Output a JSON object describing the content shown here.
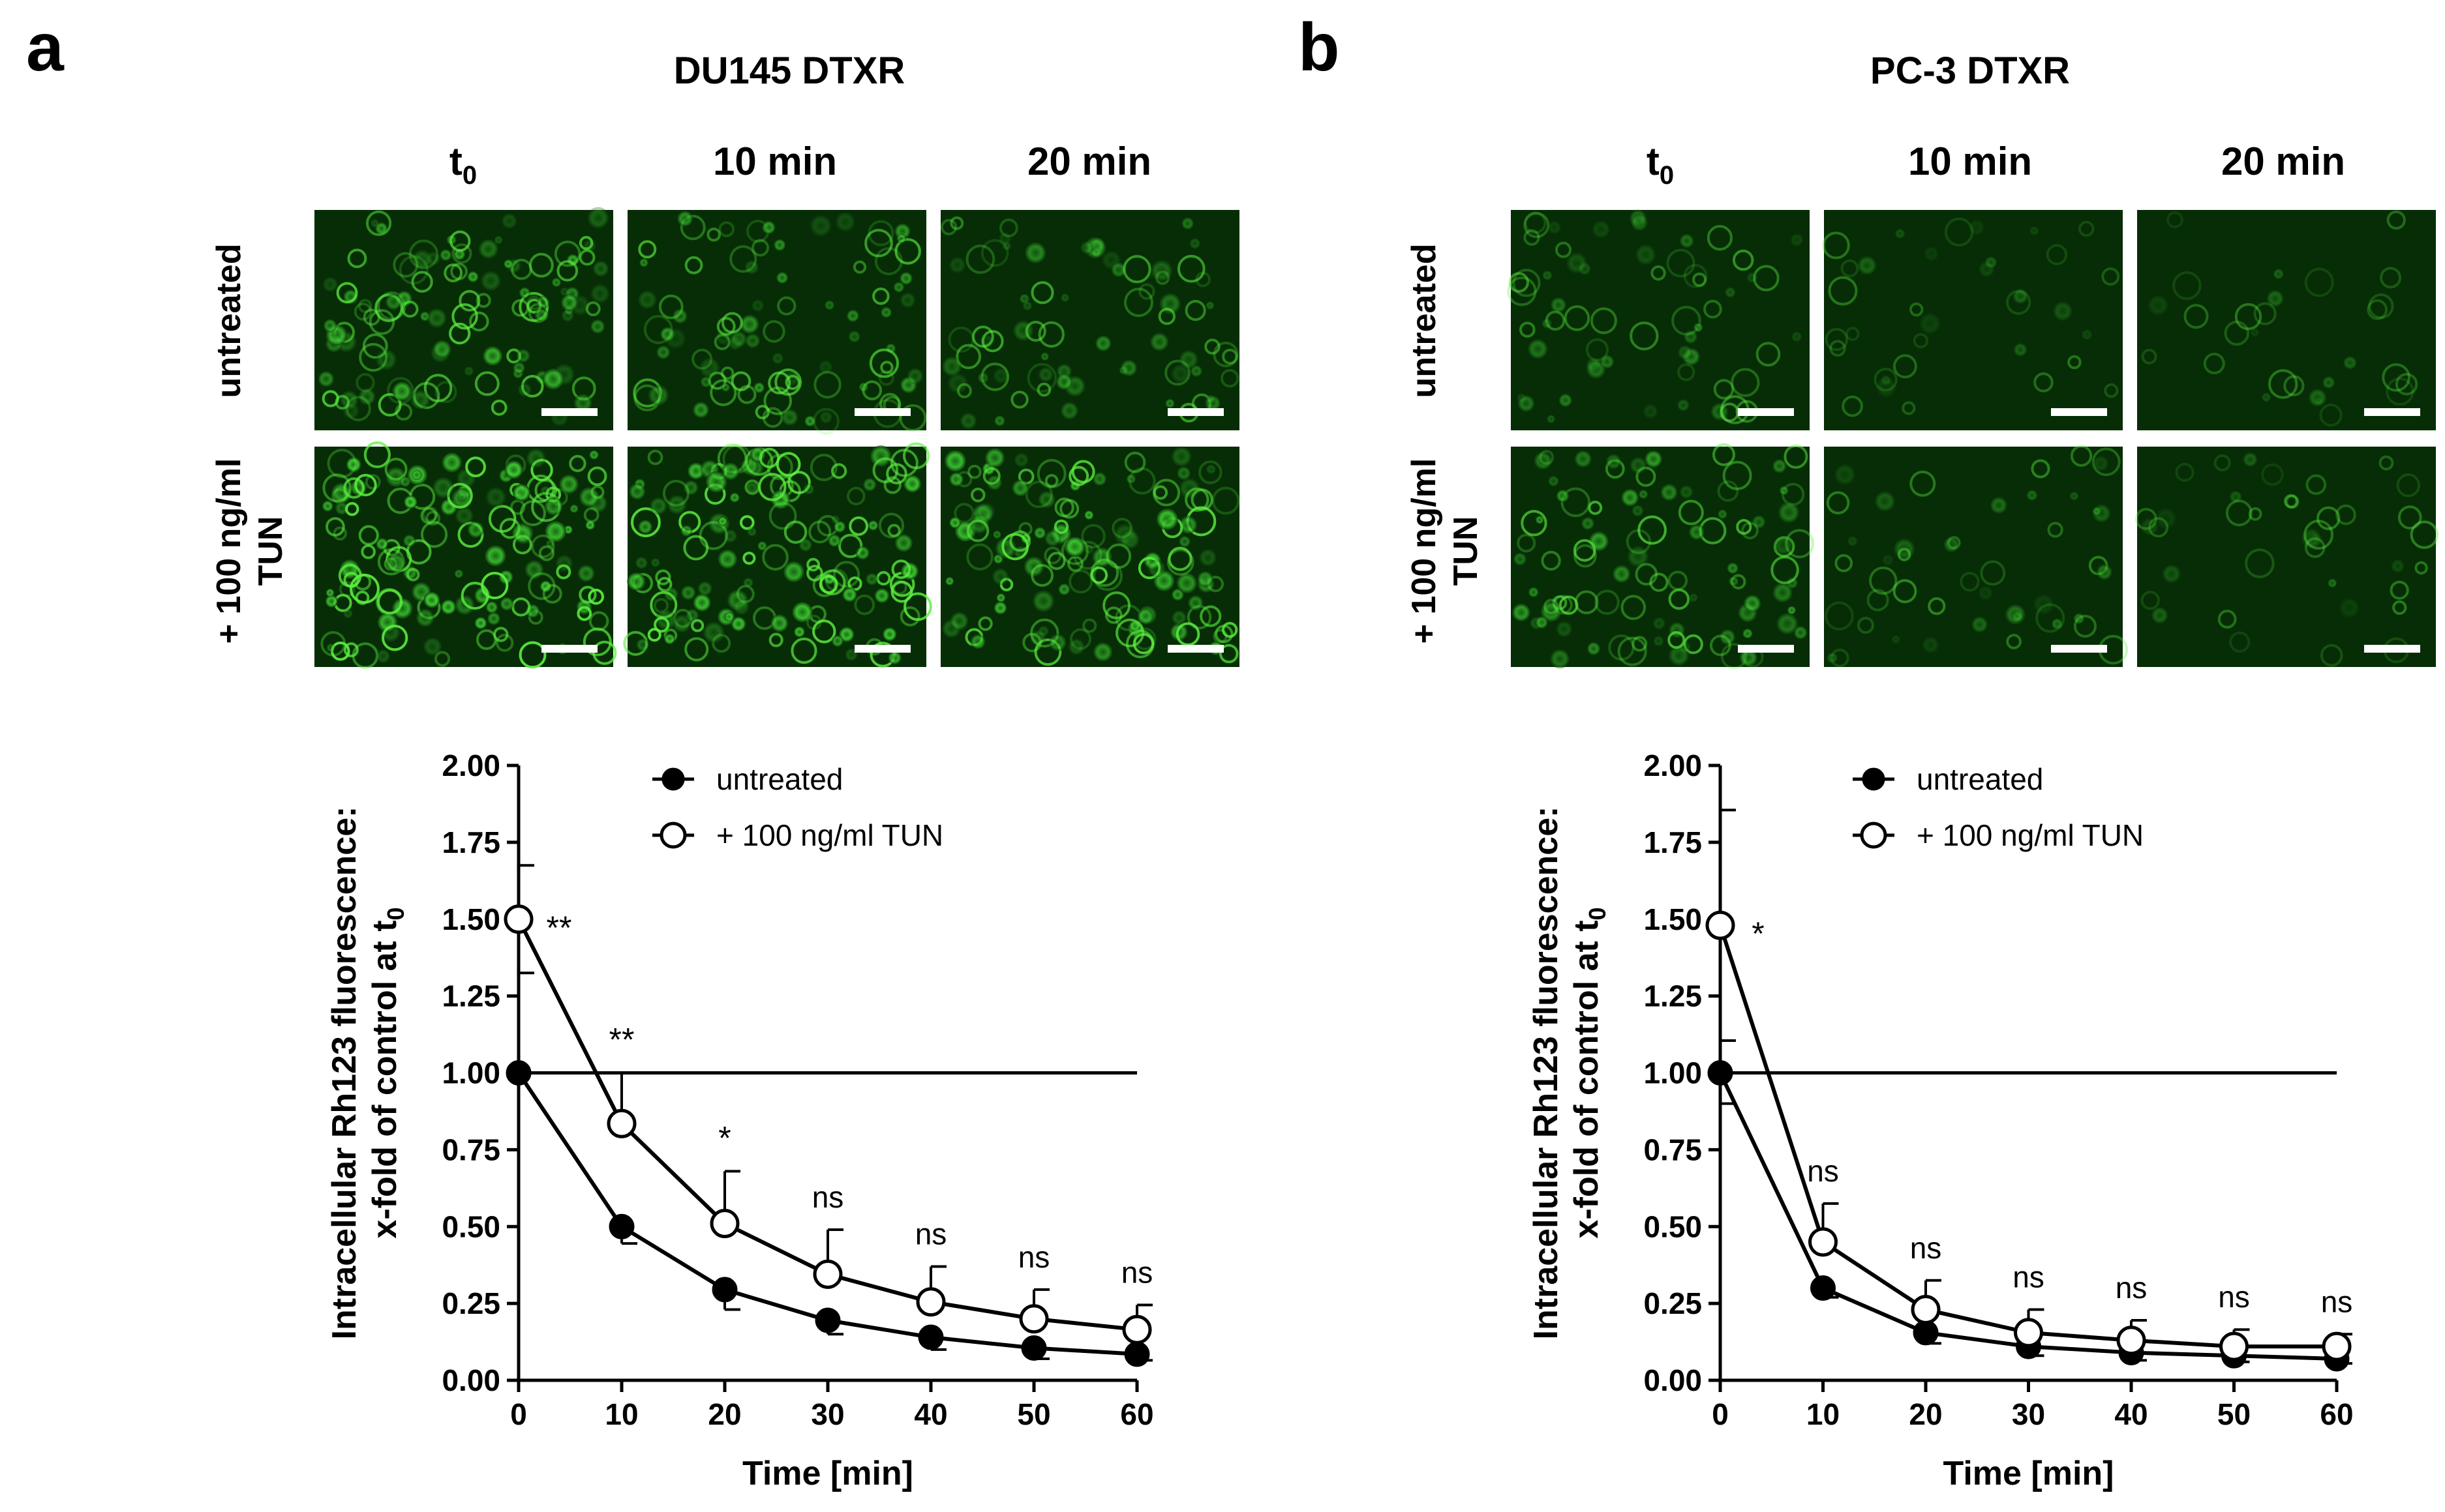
{
  "panels": [
    {
      "letter": "a",
      "title": "DU145 DTXR",
      "time_labels": [
        {
          "main": "t",
          "sub": "0"
        },
        {
          "main": "10 min",
          "sub": ""
        },
        {
          "main": "20 min",
          "sub": ""
        }
      ],
      "row_labels": [
        {
          "lines": [
            "untreated"
          ]
        },
        {
          "lines": [
            "+ 100 ng/ml",
            "TUN"
          ]
        }
      ],
      "micrograph_density": [
        [
          0.62,
          0.46,
          0.36
        ],
        [
          0.88,
          0.82,
          0.78
        ]
      ]
    },
    {
      "letter": "b",
      "title": "PC-3 DTXR",
      "time_labels": [
        {
          "main": "t",
          "sub": "0"
        },
        {
          "main": "10 min",
          "sub": ""
        },
        {
          "main": "20 min",
          "sub": ""
        }
      ],
      "row_labels": [
        {
          "lines": [
            "untreated"
          ]
        },
        {
          "lines": [
            "+ 100 ng/ml",
            "TUN"
          ]
        }
      ],
      "micrograph_density": [
        [
          0.26,
          0.09,
          0.05
        ],
        [
          0.5,
          0.17,
          0.12
        ]
      ]
    }
  ],
  "chart_data": [
    {
      "type": "line",
      "panel": "a",
      "xlabel": "Time [min]",
      "ylabel_line1": "Intracellular Rh123 fluorescence:",
      "ylabel_line2_main": "x-fold of control at t",
      "ylabel_line2_sub": "0",
      "xlim": [
        0,
        60
      ],
      "ylim": [
        0,
        2
      ],
      "x_ticks": [
        0,
        10,
        20,
        30,
        40,
        50,
        60
      ],
      "y_ticks": [
        "0.00",
        "0.25",
        "0.50",
        "0.75",
        "1.00",
        "1.25",
        "1.50",
        "1.75",
        "2.00"
      ],
      "reference_line": 1.0,
      "series": [
        {
          "name": "untreated",
          "marker": "filled",
          "x": [
            0,
            10,
            20,
            30,
            40,
            50,
            60
          ],
          "values": [
            1.0,
            0.5,
            0.295,
            0.195,
            0.14,
            0.105,
            0.085
          ],
          "err": [
            0,
            0.055,
            0.065,
            0.045,
            0.04,
            0.035,
            0.02
          ]
        },
        {
          "name": "+ 100 ng/ml TUN",
          "marker": "open",
          "x": [
            0,
            10,
            20,
            30,
            40,
            50,
            60
          ],
          "values": [
            1.5,
            0.835,
            0.51,
            0.345,
            0.255,
            0.2,
            0.165
          ],
          "err": [
            0.175,
            0.165,
            0.17,
            0.145,
            0.115,
            0.095,
            0.08
          ]
        }
      ],
      "annotations": [
        {
          "x": 0,
          "label": "**"
        },
        {
          "x": 10,
          "label": "**"
        },
        {
          "x": 20,
          "label": "*"
        },
        {
          "x": 30,
          "label": "ns"
        },
        {
          "x": 40,
          "label": "ns"
        },
        {
          "x": 50,
          "label": "ns"
        },
        {
          "x": 60,
          "label": "ns"
        }
      ]
    },
    {
      "type": "line",
      "panel": "b",
      "xlabel": "Time [min]",
      "ylabel_line1": "Intracellular Rh123 fluorescence:",
      "ylabel_line2_main": "x-fold of control at t",
      "ylabel_line2_sub": "0",
      "xlim": [
        0,
        60
      ],
      "ylim": [
        0,
        2
      ],
      "x_ticks": [
        0,
        10,
        20,
        30,
        40,
        50,
        60
      ],
      "y_ticks": [
        "0.00",
        "0.25",
        "0.50",
        "0.75",
        "1.00",
        "1.25",
        "1.50",
        "1.75",
        "2.00"
      ],
      "reference_line": 1.0,
      "series": [
        {
          "name": "untreated",
          "marker": "filled",
          "x": [
            0,
            10,
            20,
            30,
            40,
            50,
            60
          ],
          "values": [
            1.0,
            0.3,
            0.155,
            0.11,
            0.09,
            0.08,
            0.07
          ],
          "err": [
            0.1,
            0.03,
            0.035,
            0.03,
            0.025,
            0.02,
            0.015
          ]
        },
        {
          "name": "+ 100 ng/ml TUN",
          "marker": "open",
          "x": [
            0,
            10,
            20,
            30,
            40,
            50,
            60
          ],
          "values": [
            1.48,
            0.45,
            0.23,
            0.155,
            0.13,
            0.11,
            0.11
          ],
          "err": [
            0.375,
            0.125,
            0.095,
            0.075,
            0.065,
            0.055,
            0.04
          ]
        }
      ],
      "annotations": [
        {
          "x": 0,
          "label": "*"
        },
        {
          "x": 10,
          "label": "ns"
        },
        {
          "x": 20,
          "label": "ns"
        },
        {
          "x": 30,
          "label": "ns"
        },
        {
          "x": 40,
          "label": "ns"
        },
        {
          "x": 50,
          "label": "ns"
        },
        {
          "x": 60,
          "label": "ns"
        }
      ]
    }
  ]
}
